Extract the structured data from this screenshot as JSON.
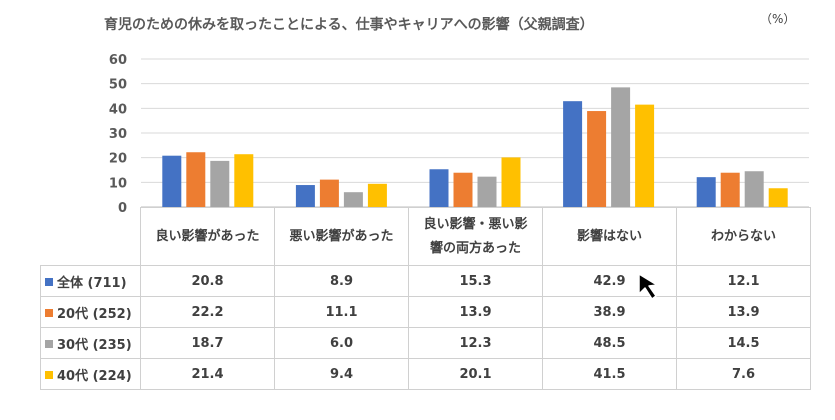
{
  "chart_data": {
    "type": "bar",
    "title": "育児のための休みを取ったことによる、仕事やキャリアへの影響（父親調査）",
    "unit": "（%）",
    "ylim": [
      0,
      60
    ],
    "yticks": [
      0,
      10,
      20,
      30,
      40,
      50,
      60
    ],
    "grid": true,
    "categories": [
      "良い影響があった",
      "悪い影響があった",
      "良い影響・悪い影響の両方あった",
      "影響はない",
      "わからない"
    ],
    "category_lines": [
      [
        "良い影響があった"
      ],
      [
        "悪い影響があった"
      ],
      [
        "良い影響・悪い影",
        "響の両方あった"
      ],
      [
        "影響はない"
      ],
      [
        "わからない"
      ]
    ],
    "series": [
      {
        "name": "全体 (711)",
        "color": "#4472c4",
        "values": [
          20.8,
          8.9,
          15.3,
          42.9,
          12.1
        ]
      },
      {
        "name": "20代 (252)",
        "color": "#ed7d31",
        "values": [
          22.2,
          11.1,
          13.9,
          38.9,
          13.9
        ]
      },
      {
        "name": "30代 (235)",
        "color": "#a5a5a5",
        "values": [
          18.7,
          6.0,
          12.3,
          48.5,
          14.5
        ]
      },
      {
        "name": "40代 (224)",
        "color": "#ffc000",
        "values": [
          21.4,
          9.4,
          20.1,
          41.5,
          7.6
        ]
      }
    ]
  },
  "cursor": {
    "icon": "mouse-pointer-icon"
  }
}
